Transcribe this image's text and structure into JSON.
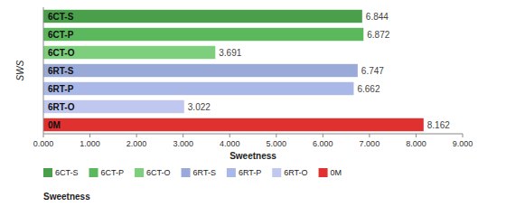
{
  "chart_data": {
    "type": "bar",
    "orientation": "horizontal",
    "categories": [
      "6CT-S",
      "6CT-P",
      "6CT-O",
      "6RT-S",
      "6RT-P",
      "6RT-O",
      "0M"
    ],
    "values": [
      6.844,
      6.872,
      3.691,
      6.747,
      6.662,
      3.022,
      8.162
    ],
    "colors": [
      "#4aa04a",
      "#5cb85c",
      "#7dcf7d",
      "#9aaad8",
      "#aab8e8",
      "#c0c8f0",
      "#e03030"
    ],
    "xlabel": "Sweetness",
    "ylabel": "SWS",
    "xlim": [
      0,
      9.0
    ],
    "xticks": [
      {
        "value": 0.0,
        "label": "0.000"
      },
      {
        "value": 1.0,
        "label": "1.000"
      },
      {
        "value": 2.0,
        "label": "2.000"
      },
      {
        "value": 3.0,
        "label": "3.000"
      },
      {
        "value": 4.0,
        "label": "4.000"
      },
      {
        "value": 5.0,
        "label": "5.000"
      },
      {
        "value": 6.0,
        "label": "6.000"
      },
      {
        "value": 7.0,
        "label": "7.000"
      },
      {
        "value": 8.0,
        "label": "8.000"
      },
      {
        "value": 9.0,
        "label": "9.000"
      }
    ],
    "grid": false,
    "legend": "bottom",
    "data_labels": true
  }
}
